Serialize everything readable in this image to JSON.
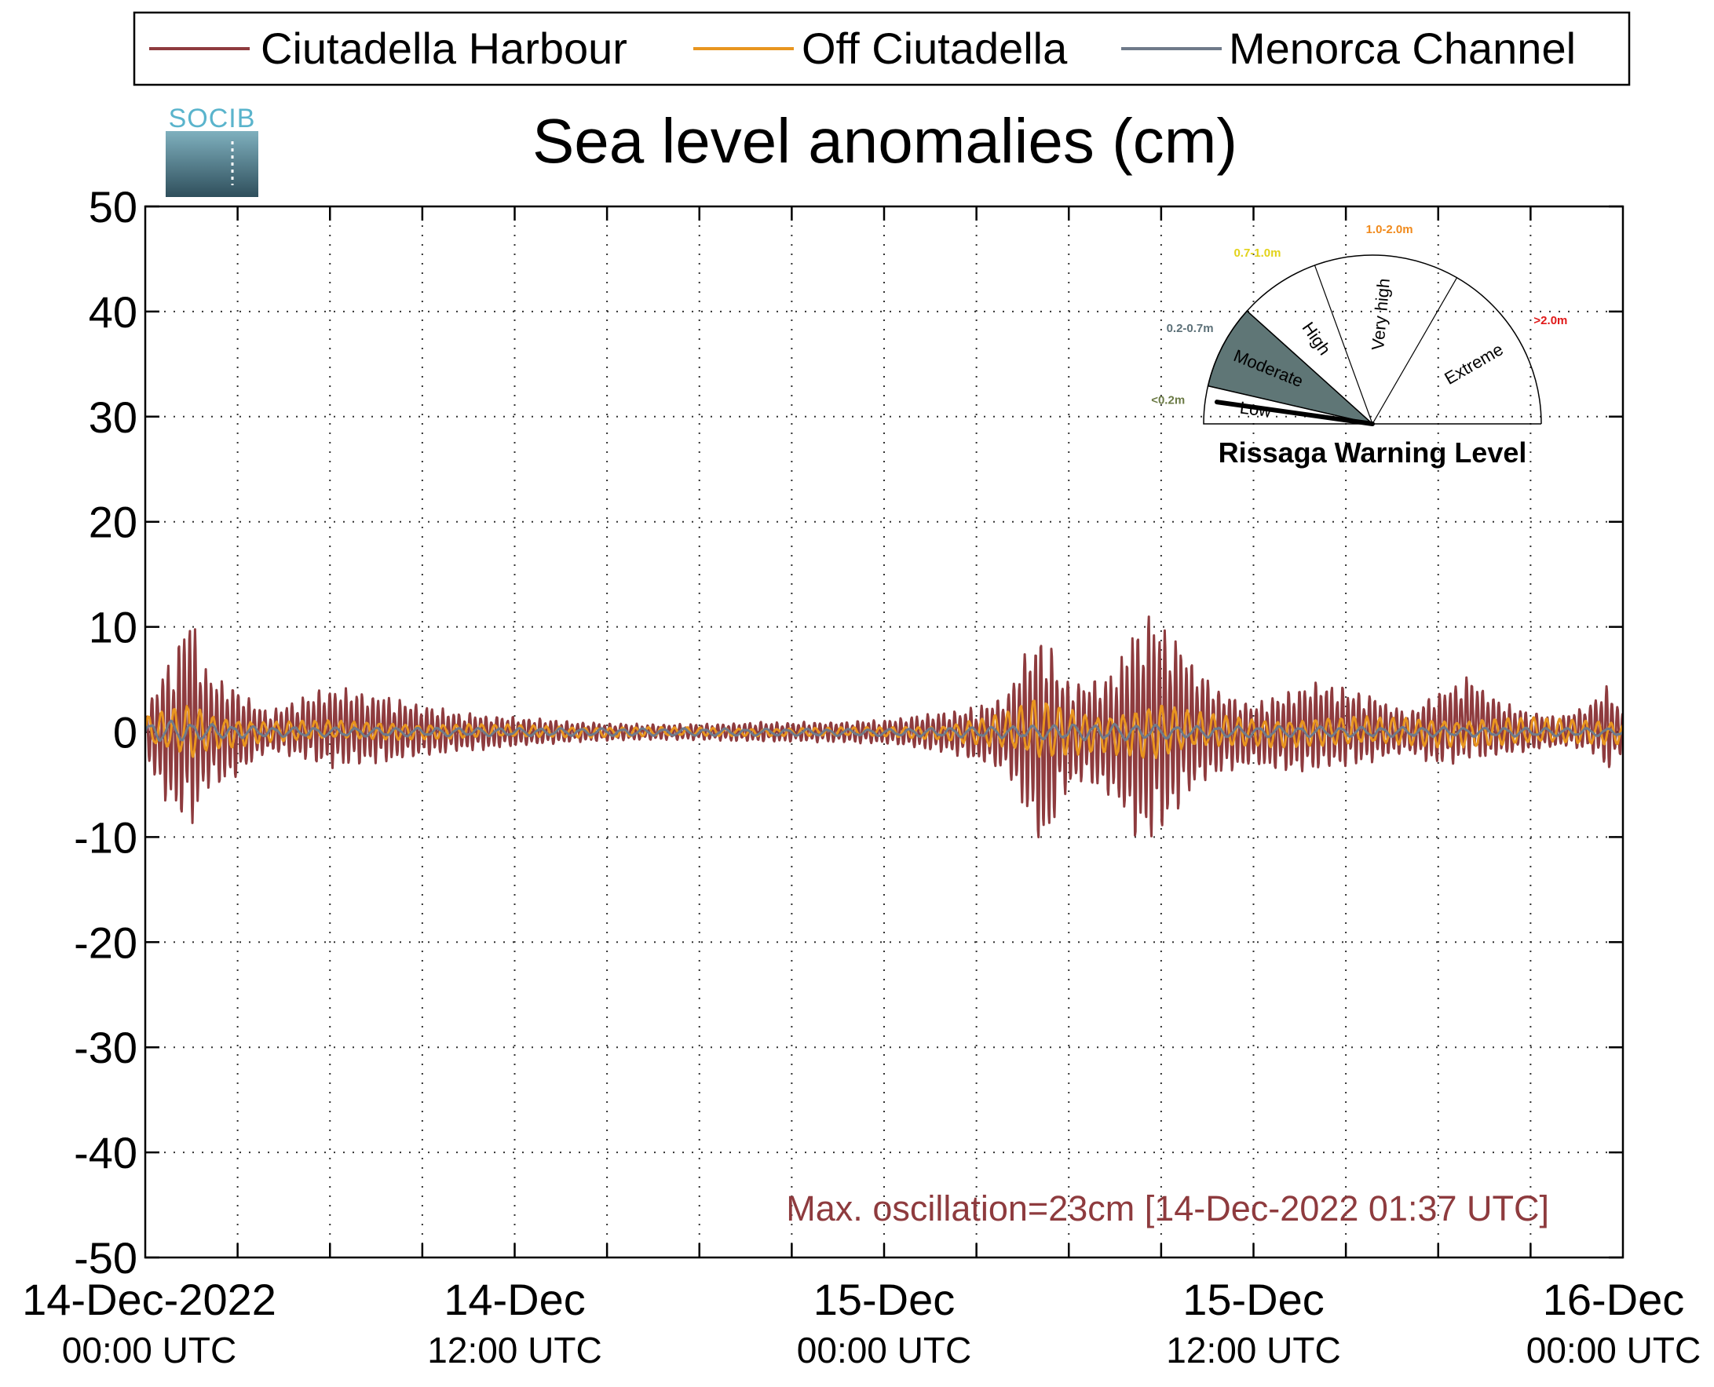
{
  "legend": [
    {
      "name": "Ciutadella Harbour",
      "color": "#8e3b3e"
    },
    {
      "name": "Off Ciutadella",
      "color": "#e8951f"
    },
    {
      "name": "Menorca Channel",
      "color": "#6f7a8a"
    }
  ],
  "logo": {
    "text": "SOCIB"
  },
  "annotation": "Max. oscillation=23cm [14-Dec-2022 01:37 UTC]",
  "gauge": {
    "title": "Rissaga Warning Level",
    "levels": [
      {
        "name": "Low",
        "range": "<0.2m",
        "range_color": "#6b7a45"
      },
      {
        "name": "Moderate",
        "range": "0.2-0.7m",
        "range_color": "#5c7078"
      },
      {
        "name": "High",
        "range": "0.7-1.0m",
        "range_color": "#e2d21a"
      },
      {
        "name": "Very high",
        "range": "1.0-2.0m",
        "range_color": "#f08a1c"
      },
      {
        "name": "Extreme",
        "range": ">2.0m",
        "range_color": "#e01818"
      }
    ],
    "active_level": "Moderate",
    "active_color": "#5f7676"
  },
  "chart_data": {
    "type": "line",
    "title": "Sea level anomalies (cm)",
    "ylim": [
      -50,
      50
    ],
    "yticks": [
      50,
      40,
      30,
      20,
      10,
      0,
      -10,
      -20,
      -30,
      -40,
      -50
    ],
    "xlim_hours": [
      0,
      48
    ],
    "xticks": [
      {
        "hour": 0,
        "date": "14-Dec-2022",
        "time": "00:00 UTC"
      },
      {
        "hour": 12,
        "date": "14-Dec",
        "time": "12:00 UTC"
      },
      {
        "hour": 24,
        "date": "15-Dec",
        "time": "00:00 UTC"
      },
      {
        "hour": 36,
        "date": "15-Dec",
        "time": "12:00 UTC"
      },
      {
        "hour": 48,
        "date": "16-Dec",
        "time": "00:00 UTC"
      }
    ],
    "grid": true,
    "legend_position": "top",
    "series": [
      {
        "name": "Ciutadella Harbour",
        "color": "#8e3b3e",
        "envelope_hours": [
          0,
          0.5,
          1,
          1.4,
          2,
          3,
          4,
          6,
          8,
          10,
          12,
          14,
          16,
          18,
          20,
          22,
          24,
          26,
          27,
          28,
          28.7,
          29.2,
          29.8,
          30.5,
          31.5,
          32,
          32.5,
          33,
          33.5,
          34,
          35,
          36,
          37,
          38,
          39,
          40,
          41,
          42,
          43,
          44,
          45,
          46,
          47,
          47.5,
          48
        ],
        "envelope_max": [
          2,
          6,
          8,
          12.5,
          6,
          4.5,
          2,
          4.5,
          3.5,
          2,
          1.5,
          1,
          0.8,
          0.8,
          1,
          1,
          1.2,
          2,
          2.5,
          4,
          9,
          10.5,
          6,
          5,
          6,
          10,
          12,
          11,
          9.5,
          7,
          4,
          3,
          4,
          5,
          4.5,
          3.5,
          2,
          4,
          5.5,
          3,
          2,
          1.5,
          3,
          5,
          2
        ],
        "envelope_min": [
          -2,
          -6.5,
          -8,
          -10.5,
          -6,
          -4.5,
          -2,
          -3.5,
          -3,
          -2,
          -1.5,
          -1,
          -0.8,
          -0.8,
          -1,
          -1,
          -1.2,
          -2,
          -3,
          -4,
          -9,
          -12.5,
          -6.5,
          -5,
          -7,
          -10,
          -11,
          -10.5,
          -8,
          -6,
          -4,
          -3.5,
          -4,
          -4,
          -3.5,
          -3,
          -2,
          -3.5,
          -3,
          -2.5,
          -2,
          -1.5,
          -2,
          -4,
          -2
        ],
        "period_minutes": 10.5
      },
      {
        "name": "Off Ciutadella",
        "color": "#e8951f",
        "envelope_hours": [
          0,
          1,
          1.5,
          2,
          4,
          8,
          12,
          16,
          20,
          24,
          26,
          28,
          29,
          30,
          31,
          32,
          33,
          34,
          36,
          40,
          44,
          48
        ],
        "envelope_max": [
          1.5,
          2.5,
          3,
          2,
          1.2,
          1,
          0.7,
          0.5,
          0.4,
          0.5,
          0.8,
          2,
          3.5,
          2.5,
          2,
          2.5,
          3,
          2,
          1.5,
          1.5,
          1.5,
          1.2
        ],
        "envelope_min": [
          -1.5,
          -2.5,
          -3,
          -2,
          -1,
          -0.8,
          -0.6,
          -0.5,
          -0.4,
          -0.5,
          -0.8,
          -2,
          -3.5,
          -2.5,
          -2,
          -2.5,
          -3,
          -2,
          -1.5,
          -1.5,
          -1.5,
          -1.2
        ],
        "period_minutes": 25
      },
      {
        "name": "Menorca Channel",
        "color": "#6f7a8a",
        "envelope_hours": [
          0,
          1,
          2,
          4,
          12,
          24,
          28,
          30,
          32,
          34,
          40,
          48
        ],
        "envelope_max": [
          1,
          1.2,
          0.8,
          0.5,
          0.4,
          0.3,
          0.6,
          0.8,
          0.8,
          0.6,
          0.5,
          0.4
        ],
        "envelope_min": [
          -1,
          -1,
          -0.8,
          -0.5,
          -0.4,
          -0.4,
          -0.6,
          -0.8,
          -0.8,
          -0.6,
          -0.5,
          -0.4
        ],
        "period_minutes": 40
      }
    ]
  }
}
